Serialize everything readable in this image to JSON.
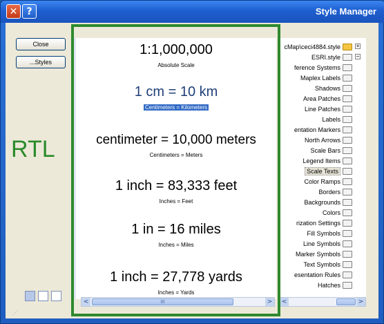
{
  "window": {
    "title": "Style Manager",
    "close_glyph": "✕",
    "help_glyph": "?"
  },
  "left_panel": {
    "close_label": "Close",
    "styles_label": "...Styles",
    "annotation": "RTL"
  },
  "preview": {
    "samples": [
      {
        "text": "1:1,000,000",
        "caption": "Absolute Scale"
      },
      {
        "text": "1 cm = 10 km",
        "caption": "Centimeters = Kilometers"
      },
      {
        "text": "centimeter = 10,000 meters",
        "caption": "Centimeters = Meters"
      },
      {
        "text": "1 inch = 83,333 feet",
        "caption": "Inches = Feet"
      },
      {
        "text": "1 in = 16 miles",
        "caption": "Inches = Miles"
      },
      {
        "text": "1 inch = 27,778 yards",
        "caption": "Inches = Yards"
      }
    ]
  },
  "scrollbars": {
    "left": "<",
    "right": ">",
    "thumb_grip": "III"
  },
  "tree": {
    "items": [
      {
        "label": "cMap\\ceci4884.style",
        "icon": "folder-gold",
        "expander": "+"
      },
      {
        "label": "ESRI.style",
        "icon": "folder",
        "expander": "−"
      },
      {
        "label": "ference Systems",
        "icon": "folder"
      },
      {
        "label": "Maplex Labels",
        "icon": "folder"
      },
      {
        "label": "Shadows",
        "icon": "folder"
      },
      {
        "label": "Area Patches",
        "icon": "folder"
      },
      {
        "label": "Line Patches",
        "icon": "folder"
      },
      {
        "label": "Labels",
        "icon": "folder"
      },
      {
        "label": "entation Markers",
        "icon": "folder"
      },
      {
        "label": "North Arrows",
        "icon": "folder"
      },
      {
        "label": "Scale Bars",
        "icon": "folder"
      },
      {
        "label": "Legend Items",
        "icon": "folder"
      },
      {
        "label": "Scale Texts",
        "icon": "folder-open",
        "selected": true
      },
      {
        "label": "Color Ramps",
        "icon": "folder"
      },
      {
        "label": "Borders",
        "icon": "folder"
      },
      {
        "label": "Backgrounds",
        "icon": "folder"
      },
      {
        "label": "Colors",
        "icon": "folder"
      },
      {
        "label": "rization Settings",
        "icon": "folder"
      },
      {
        "label": "Fill Symbols",
        "icon": "folder"
      },
      {
        "label": "Line Symbols",
        "icon": "folder"
      },
      {
        "label": "Marker Symbols",
        "icon": "folder"
      },
      {
        "label": "Text Symbols",
        "icon": "folder"
      },
      {
        "label": "esentation Rules",
        "icon": "folder"
      },
      {
        "label": "Hatches",
        "icon": "folder"
      }
    ]
  },
  "colors": {
    "highlight_box": "#2e8a2e",
    "selection": "#316ac5",
    "titlebar": "#1f5fd0"
  }
}
